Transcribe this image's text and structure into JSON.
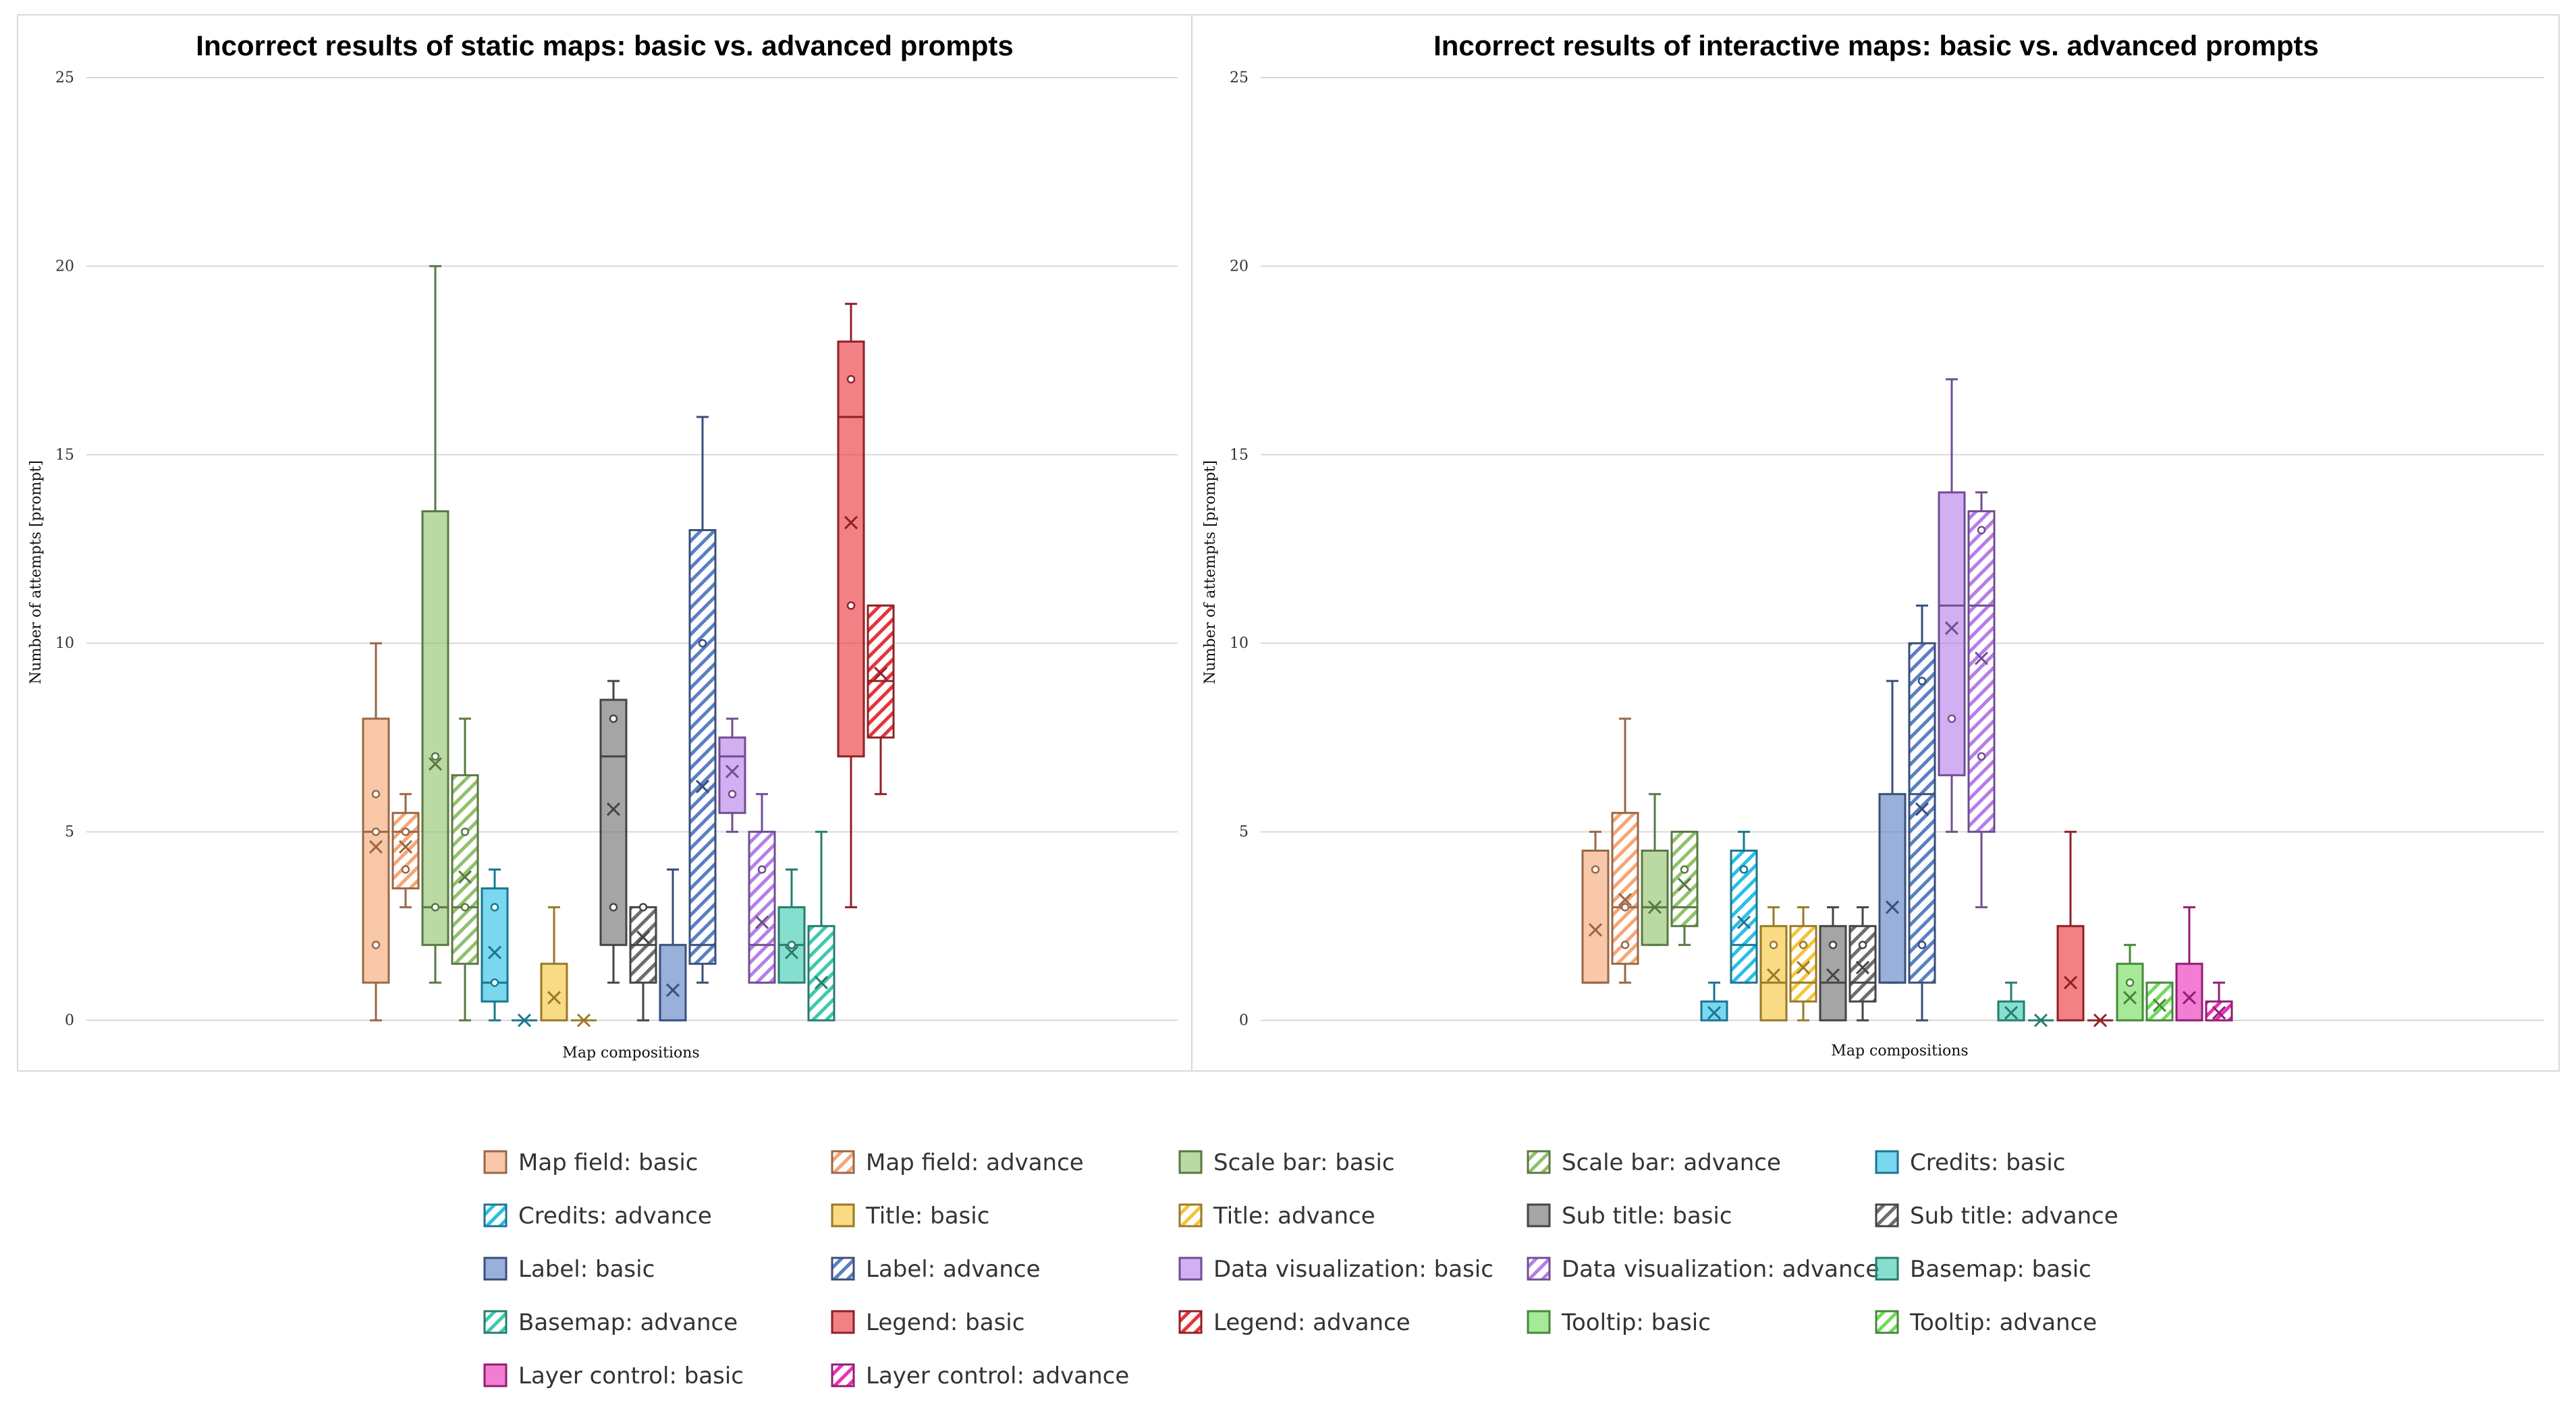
{
  "chart_data": [
    {
      "type": "box",
      "title": "Incorrect results of static maps: basic vs. advanced prompts",
      "xlabel": "Map compositions",
      "ylabel": "Number of attempts [prompt]",
      "ylim": [
        0,
        25
      ],
      "yticks": [
        "0",
        "5",
        "10",
        "15",
        "20",
        "25"
      ],
      "grid": true,
      "series": [
        {
          "name": "Map field: basic",
          "min": 0,
          "q1": 1,
          "median": 5,
          "q3": 8,
          "max": 10,
          "mean": 4.6,
          "points": [
            2,
            5,
            6
          ]
        },
        {
          "name": "Map field: advance",
          "min": 3,
          "q1": 3.5,
          "median": 5,
          "q3": 5.5,
          "max": 6,
          "mean": 4.6,
          "points": [
            4,
            5
          ]
        },
        {
          "name": "Scale bar: basic",
          "min": 1,
          "q1": 2,
          "median": 3,
          "q3": 13.5,
          "max": 20,
          "mean": 6.8,
          "points": [
            3,
            7
          ]
        },
        {
          "name": "Scale bar: advance",
          "min": 0,
          "q1": 1.5,
          "median": 3,
          "q3": 6.5,
          "max": 8,
          "mean": 3.8,
          "points": [
            3,
            5
          ]
        },
        {
          "name": "Credits: basic",
          "min": 0,
          "q1": 0.5,
          "median": 1,
          "q3": 3.5,
          "max": 4,
          "mean": 1.8,
          "points": [
            1,
            3
          ]
        },
        {
          "name": "Credits: advance",
          "min": 0,
          "q1": 0,
          "median": 0,
          "q3": 0,
          "max": 0,
          "mean": 0,
          "points": []
        },
        {
          "name": "Title: basic",
          "min": 0,
          "q1": 0,
          "median": 0,
          "q3": 1.5,
          "max": 3,
          "mean": 0.6,
          "points": []
        },
        {
          "name": "Title: advance",
          "min": 0,
          "q1": 0,
          "median": 0,
          "q3": 0,
          "max": 0,
          "mean": 0,
          "points": []
        },
        {
          "name": "Sub title: basic",
          "min": 1,
          "q1": 2,
          "median": 7,
          "q3": 8.5,
          "max": 9,
          "mean": 5.6,
          "points": [
            3,
            8
          ]
        },
        {
          "name": "Sub title: advance",
          "min": 0,
          "q1": 1,
          "median": 2,
          "q3": 3,
          "max": 3,
          "mean": 2.2,
          "points": [
            3
          ]
        },
        {
          "name": "Label: basic",
          "min": 0,
          "q1": 0,
          "median": 0,
          "q3": 2,
          "max": 4,
          "mean": 0.8,
          "points": []
        },
        {
          "name": "Label: advance",
          "min": 1,
          "q1": 1.5,
          "median": 2,
          "q3": 13,
          "max": 16,
          "mean": 6.2,
          "points": [
            10
          ]
        },
        {
          "name": "Data visualization: basic",
          "min": 5,
          "q1": 5.5,
          "median": 7,
          "q3": 7.5,
          "max": 8,
          "mean": 6.6,
          "points": [
            6
          ]
        },
        {
          "name": "Data visualization: advance",
          "min": 1,
          "q1": 1,
          "median": 2,
          "q3": 5,
          "max": 6,
          "mean": 2.6,
          "points": [
            4
          ]
        },
        {
          "name": "Basemap: basic",
          "min": 1,
          "q1": 1,
          "median": 2,
          "q3": 3,
          "max": 4,
          "mean": 1.8,
          "points": [
            2
          ]
        },
        {
          "name": "Basemap: advance",
          "min": 0,
          "q1": 0,
          "median": 0,
          "q3": 2.5,
          "max": 5,
          "mean": 1,
          "points": []
        },
        {
          "name": "Legend: basic",
          "min": 3,
          "q1": 7,
          "median": 16,
          "q3": 18,
          "max": 19,
          "mean": 13.2,
          "points": [
            11,
            17
          ]
        },
        {
          "name": "Legend: advance",
          "min": 6,
          "q1": 7.5,
          "median": 9,
          "q3": 11,
          "max": 11,
          "mean": 9.2,
          "points": []
        }
      ]
    },
    {
      "type": "box",
      "title": "Incorrect results of interactive maps: basic vs. advanced prompts",
      "xlabel": "Map compositions",
      "ylabel": "Number of attempts [prompt]",
      "ylim": [
        0,
        25
      ],
      "yticks": [
        "0",
        "5",
        "10",
        "15",
        "20",
        "25"
      ],
      "grid": true,
      "series": [
        {
          "name": "Map field: basic",
          "min": 1,
          "q1": 1,
          "median": 1,
          "q3": 4.5,
          "max": 5,
          "mean": 2.4,
          "points": [
            4
          ]
        },
        {
          "name": "Map field: advance",
          "min": 1,
          "q1": 1.5,
          "median": 3,
          "q3": 5.5,
          "max": 8,
          "mean": 3.2,
          "points": [
            2,
            3
          ]
        },
        {
          "name": "Scale bar: basic",
          "min": 2,
          "q1": 2,
          "median": 3,
          "q3": 4.5,
          "max": 6,
          "mean": 3,
          "points": []
        },
        {
          "name": "Scale bar: advance",
          "min": 2,
          "q1": 2.5,
          "median": 3,
          "q3": 5,
          "max": 5,
          "mean": 3.6,
          "points": [
            4
          ]
        },
        {
          "name": "Credits: basic",
          "min": 0,
          "q1": 0,
          "median": 0,
          "q3": 0.5,
          "max": 1,
          "mean": 0.2,
          "points": []
        },
        {
          "name": "Credits: advance",
          "min": 1,
          "q1": 1,
          "median": 2,
          "q3": 4.5,
          "max": 5,
          "mean": 2.6,
          "points": [
            4
          ]
        },
        {
          "name": "Title: basic",
          "min": 0,
          "q1": 0,
          "median": 1,
          "q3": 2.5,
          "max": 3,
          "mean": 1.2,
          "points": [
            2
          ]
        },
        {
          "name": "Title: advance",
          "min": 0,
          "q1": 0.5,
          "median": 1,
          "q3": 2.5,
          "max": 3,
          "mean": 1.4,
          "points": [
            2
          ]
        },
        {
          "name": "Sub title: basic",
          "min": 0,
          "q1": 0,
          "median": 1,
          "q3": 2.5,
          "max": 3,
          "mean": 1.2,
          "points": [
            2
          ]
        },
        {
          "name": "Sub title: advance",
          "min": 0,
          "q1": 0.5,
          "median": 1,
          "q3": 2.5,
          "max": 3,
          "mean": 1.4,
          "points": [
            2
          ]
        },
        {
          "name": "Label: basic",
          "min": 1,
          "q1": 1,
          "median": 1,
          "q3": 6,
          "max": 9,
          "mean": 3,
          "points": []
        },
        {
          "name": "Label: advance",
          "min": 0,
          "q1": 1,
          "median": 6,
          "q3": 10,
          "max": 11,
          "mean": 5.6,
          "points": [
            2,
            9
          ]
        },
        {
          "name": "Data visualization: basic",
          "min": 5,
          "q1": 6.5,
          "median": 11,
          "q3": 14,
          "max": 17,
          "mean": 10.4,
          "points": [
            8
          ]
        },
        {
          "name": "Data visualization: advance",
          "min": 3,
          "q1": 5,
          "median": 11,
          "q3": 13.5,
          "max": 14,
          "mean": 9.6,
          "points": [
            7,
            13
          ]
        },
        {
          "name": "Basemap: basic",
          "min": 0,
          "q1": 0,
          "median": 0,
          "q3": 0.5,
          "max": 1,
          "mean": 0.2,
          "points": []
        },
        {
          "name": "Basemap: advance",
          "min": 0,
          "q1": 0,
          "median": 0,
          "q3": 0,
          "max": 0,
          "mean": 0,
          "points": []
        },
        {
          "name": "Legend: basic",
          "min": 0,
          "q1": 0,
          "median": 0,
          "q3": 2.5,
          "max": 5,
          "mean": 1,
          "points": []
        },
        {
          "name": "Legend: advance",
          "min": 0,
          "q1": 0,
          "median": 0,
          "q3": 0,
          "max": 0,
          "mean": 0,
          "points": []
        },
        {
          "name": "Tooltip: basic",
          "min": 0,
          "q1": 0,
          "median": 0,
          "q3": 1.5,
          "max": 2,
          "mean": 0.6,
          "points": [
            1
          ]
        },
        {
          "name": "Tooltip: advance",
          "min": 0,
          "q1": 0,
          "median": 0,
          "q3": 1,
          "max": 1,
          "mean": 0.4,
          "points": []
        },
        {
          "name": "Layer control: basic",
          "min": 0,
          "q1": 0,
          "median": 0,
          "q3": 1.5,
          "max": 3,
          "mean": 0.6,
          "points": []
        },
        {
          "name": "Layer control: advance",
          "min": 0,
          "q1": 0,
          "median": 0,
          "q3": 0.5,
          "max": 1,
          "mean": 0.2,
          "points": []
        }
      ]
    }
  ],
  "legend": [
    {
      "label": "Map field: basic",
      "color": "#f5a673",
      "hatch": false
    },
    {
      "label": "Map field: advance",
      "color": "#f5a673",
      "hatch": true
    },
    {
      "label": "Scale bar: basic",
      "color": "#8fc16a",
      "hatch": false
    },
    {
      "label": "Scale bar: advance",
      "color": "#8fc16a",
      "hatch": true
    },
    {
      "label": "Credits: basic",
      "color": "#29bfe6",
      "hatch": false
    },
    {
      "label": "Credits: advance",
      "color": "#29bfe6",
      "hatch": true
    },
    {
      "label": "Title: basic",
      "color": "#f6c33a",
      "hatch": false
    },
    {
      "label": "Title: advance",
      "color": "#f6c33a",
      "hatch": true
    },
    {
      "label": "Sub title: basic",
      "color": "#6e6e6e",
      "hatch": false
    },
    {
      "label": "Sub title: advance",
      "color": "#6e6e6e",
      "hatch": true
    },
    {
      "label": "Label: basic",
      "color": "#5b7fc4",
      "hatch": false
    },
    {
      "label": "Label: advance",
      "color": "#5b7fc4",
      "hatch": true
    },
    {
      "label": "Data visualization: basic",
      "color": "#b57ee8",
      "hatch": false
    },
    {
      "label": "Data visualization: advance",
      "color": "#b57ee8",
      "hatch": true
    },
    {
      "label": "Basemap: basic",
      "color": "#3cc9b0",
      "hatch": false
    },
    {
      "label": "Basemap: advance",
      "color": "#3cc9b0",
      "hatch": true
    },
    {
      "label": "Legend: basic",
      "color": "#e8333a",
      "hatch": false
    },
    {
      "label": "Legend: advance",
      "color": "#e8333a",
      "hatch": true
    },
    {
      "label": "Tooltip: basic",
      "color": "#6fdc5a",
      "hatch": false
    },
    {
      "label": "Tooltip: advance",
      "color": "#6fdc5a",
      "hatch": true
    },
    {
      "label": "Layer control: basic",
      "color": "#ea2fb9",
      "hatch": false
    },
    {
      "label": "Layer control: advance",
      "color": "#ea2fb9",
      "hatch": true
    }
  ]
}
